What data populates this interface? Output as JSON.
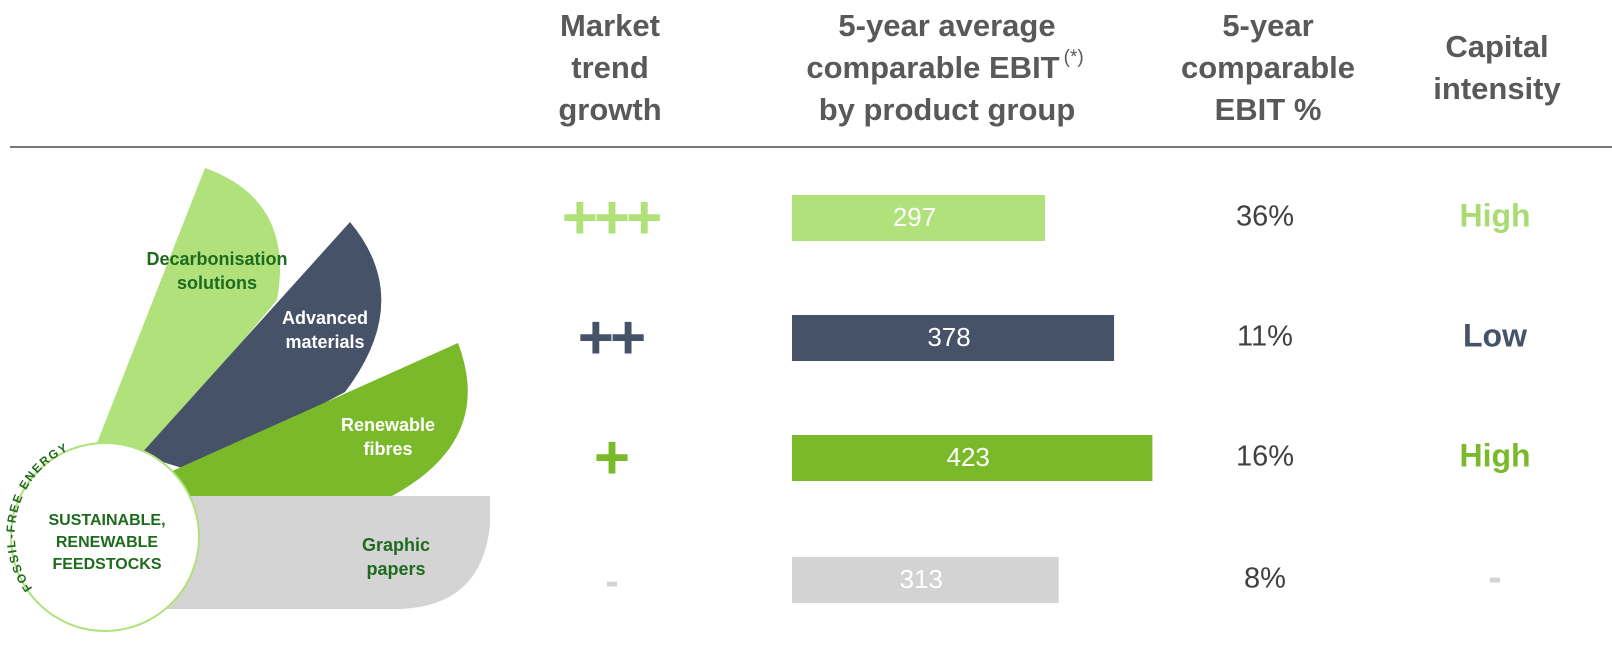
{
  "header": {
    "columns": [
      {
        "lines": [
          "Market",
          "trend",
          "growth"
        ]
      },
      {
        "lines": [
          "5-year average",
          "comparable EBIT",
          "by product group"
        ],
        "note": "(*)"
      },
      {
        "lines": [
          "5-year",
          "comparable",
          "EBIT %"
        ]
      },
      {
        "lines": [
          "Capital",
          "intensity"
        ]
      }
    ]
  },
  "diagram": {
    "center": [
      "SUSTAINABLE,",
      "RENEWABLE",
      "FEEDSTOCKS"
    ],
    "ring": "FOSSIL-FREE ENERGY",
    "petals": [
      [
        "Decarbonisation",
        "solutions"
      ],
      [
        "Advanced",
        "materials"
      ],
      [
        "Renewable",
        "fibres"
      ],
      [
        "Graphic",
        "papers"
      ]
    ]
  },
  "rows": [
    {
      "trend": "+++",
      "ebit": 297,
      "pct": "36%",
      "capital": "High",
      "color": "#b0e17a",
      "capital_color": "#a8dc72"
    },
    {
      "trend": "++",
      "ebit": 378,
      "pct": "11%",
      "capital": "Low",
      "color": "#465268",
      "capital_color": "#465268"
    },
    {
      "trend": "+",
      "ebit": 423,
      "pct": "16%",
      "capital": "High",
      "color": "#7aba2a",
      "capital_color": "#7aba2a"
    },
    {
      "trend": "-",
      "ebit": 313,
      "pct": "8%",
      "capital": "-",
      "color": "#d3d3d3",
      "capital_color": "#d3d3d3"
    }
  ]
}
